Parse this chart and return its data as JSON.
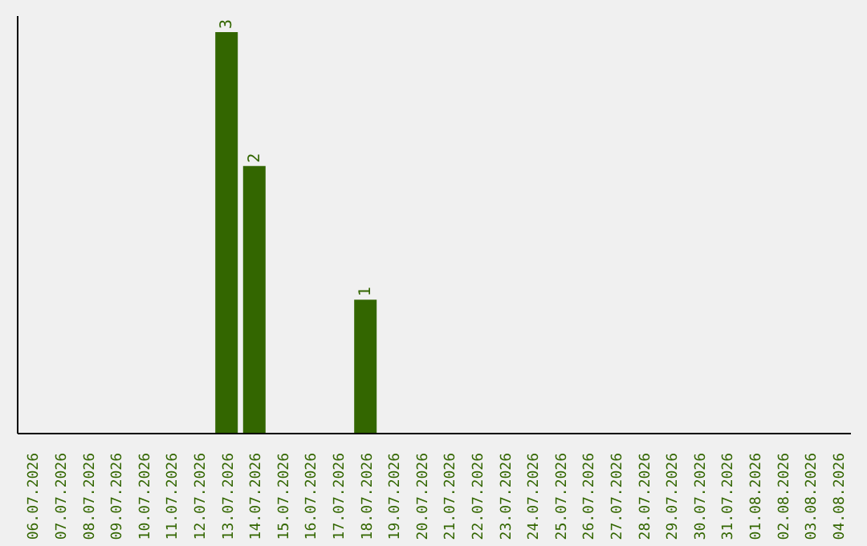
{
  "chart_data": {
    "type": "bar",
    "categories": [
      "06.07.2026",
      "07.07.2026",
      "08.07.2026",
      "09.07.2026",
      "10.07.2026",
      "11.07.2026",
      "12.07.2026",
      "13.07.2026",
      "14.07.2026",
      "15.07.2026",
      "16.07.2026",
      "17.07.2026",
      "18.07.2026",
      "19.07.2026",
      "20.07.2026",
      "21.07.2026",
      "22.07.2026",
      "23.07.2026",
      "24.07.2026",
      "25.07.2026",
      "26.07.2026",
      "27.07.2026",
      "28.07.2026",
      "29.07.2026",
      "30.07.2026",
      "31.07.2026",
      "01.08.2026",
      "02.08.2026",
      "03.08.2026",
      "04.08.2026"
    ],
    "values": [
      0,
      0,
      0,
      0,
      0,
      0,
      0,
      3,
      2,
      0,
      0,
      0,
      1,
      0,
      0,
      0,
      0,
      0,
      0,
      0,
      0,
      0,
      0,
      0,
      0,
      0,
      0,
      0,
      0,
      0
    ],
    "value_labels": [
      null,
      null,
      null,
      null,
      null,
      null,
      null,
      "3",
      "2",
      null,
      null,
      null,
      "1",
      null,
      null,
      null,
      null,
      null,
      null,
      null,
      null,
      null,
      null,
      null,
      null,
      null,
      null,
      null,
      null,
      null
    ],
    "color": "#336600",
    "grid": false,
    "tick_labels": "x"
  }
}
